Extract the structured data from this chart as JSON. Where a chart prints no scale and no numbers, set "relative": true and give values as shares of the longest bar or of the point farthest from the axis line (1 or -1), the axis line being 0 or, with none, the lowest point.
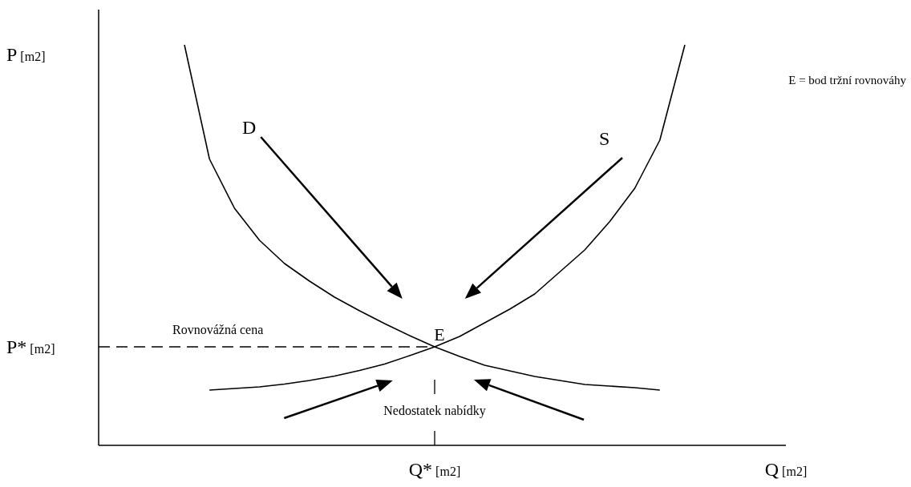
{
  "chart_data": {
    "type": "line",
    "relative": true,
    "xlabel": "Q [m2]",
    "categories": [
      null,
      null,
      null,
      null,
      null,
      null,
      null,
      null,
      null,
      null,
      null,
      null,
      null,
      null,
      null,
      null,
      null,
      null,
      null,
      null,
      null
    ],
    "series": [
      {
        "name": "D",
        "color": "#000000",
        "values": [
          1,
          0.715,
          0.592,
          0.512,
          0.454,
          0.41,
          0.37,
          0.336,
          0.304,
          0.274,
          0.246,
          0.222,
          0.2,
          0.186,
          0.172,
          0.162,
          0.152,
          0.148,
          0.144,
          0.138,
          null
        ]
      },
      {
        "name": "S",
        "color": "#000000",
        "values": [
          null,
          0.138,
          0.142,
          0.146,
          0.153,
          0.162,
          0.173,
          0.187,
          0.203,
          0.224,
          0.246,
          0.272,
          0.306,
          0.34,
          0.378,
          0.433,
          0.488,
          0.559,
          0.642,
          0.762,
          1
        ]
      }
    ],
    "ref_lines": [
      {
        "axis": "y",
        "value": 0.246,
        "label": "P* [m2]",
        "line_style": "dashed"
      }
    ],
    "annotations": [
      {
        "text": "E",
        "y": 0.246
      },
      {
        "text": "Rovnovážná cena",
        "y": 0.246
      },
      "Nedostatek nabídky",
      "Q* [m2]",
      "E = bod tržní rovnováhy",
      "P [m2]"
    ],
    "grid": false,
    "marker": "none",
    "line_style": "solid"
  }
}
